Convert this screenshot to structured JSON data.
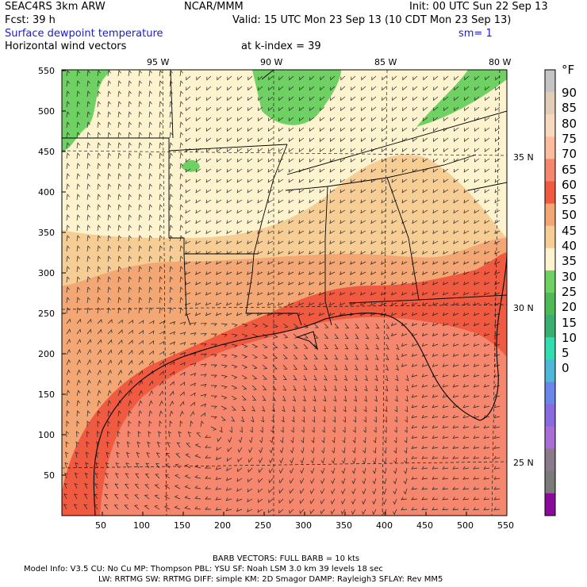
{
  "header": {
    "model": "SEAC4RS  3km ARW",
    "org": "NCAR/MMM",
    "init": "Init: 00 UTC Sun 22 Sep 13",
    "fcst": "Fcst:   39 h",
    "valid": "Valid: 15 UTC Mon 23 Sep 13 (10 CDT Mon 23 Sep 13)",
    "field": "Surface dewpoint temperature",
    "sm": "sm= 1",
    "vectors": "Horizontal wind vectors",
    "kindex": "at k-index =  39"
  },
  "lon_labels": [
    "95 W",
    "90 W",
    "85 W",
    "80 W"
  ],
  "lat_labels": [
    "35 N",
    "30 N",
    "25 N"
  ],
  "x_ticks": [
    "50",
    "100",
    "150",
    "200",
    "250",
    "300",
    "350",
    "400",
    "450",
    "500",
    "550"
  ],
  "y_ticks": [
    "550",
    "500",
    "450",
    "400",
    "350",
    "300",
    "250",
    "200",
    "150",
    "100",
    "50"
  ],
  "colorbar": {
    "unit": "°F",
    "labels": [
      "90",
      "85",
      "80",
      "75",
      "70",
      "65",
      "60",
      "55",
      "50",
      "45",
      "40",
      "35",
      "30",
      "25",
      "20",
      "15",
      "10",
      "5",
      "0"
    ],
    "colors": [
      "#c4c4c4",
      "#e2cdb8",
      "#f7d9bd",
      "#fbbd9d",
      "#f4876d",
      "#f05a40",
      "#f3a775",
      "#f7cd96",
      "#fdf3cf",
      "#6fd063",
      "#4fba55",
      "#39b06f",
      "#33ddb0",
      "#4fb8d8",
      "#6a86e8",
      "#8a6ae0",
      "#a86ed6",
      "#8a7a8a",
      "#7a7a7a",
      "#8a0a9a"
    ]
  },
  "footer": {
    "barb": "BARB VECTORS:  FULL BARB = 10 kts",
    "line1": "Model Info: V3.5      CU: No Cu      MP: Thompson     PBL: YSU       SF: Noah LSM      3.0 km   39 levels    18 sec",
    "line2": "LW: RRTMG    SW: RRTMG    DIFF: simple KM: 2D Smagor DAMP: Rayleigh3   SFLAY: Rev MM5"
  }
}
